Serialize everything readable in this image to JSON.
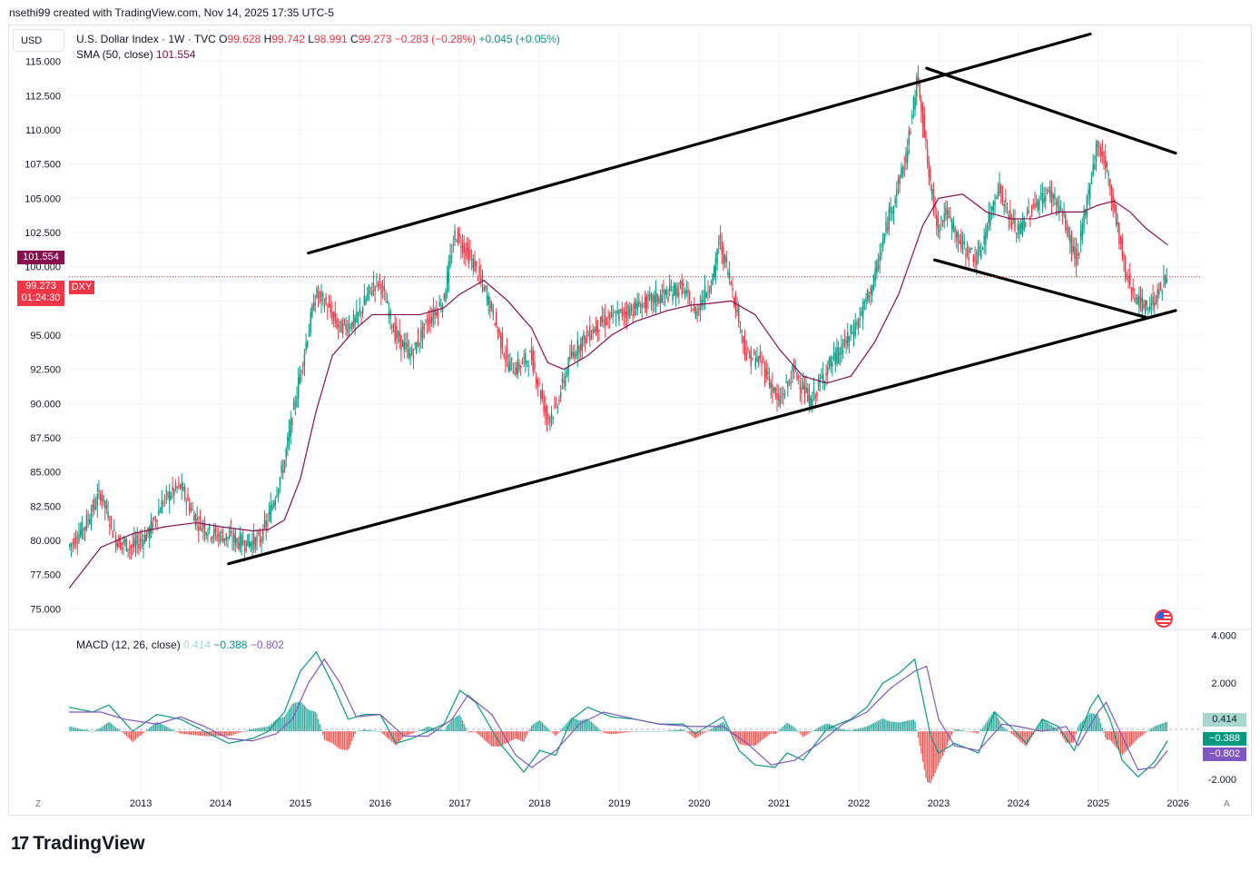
{
  "header": {
    "text": "nsethi99 created with TradingView.com, Nov 14, 2025 17:35 UTC-5"
  },
  "currency_button": "USD",
  "legend": {
    "symbol": "U.S. Dollar Index · 1W · TVC",
    "o_label": "O",
    "o_value": "99.628",
    "h_label": "H",
    "h_value": "99.742",
    "l_label": "L",
    "l_value": "98.991",
    "c_label": "C",
    "c_value": "99.273",
    "change": "−0.283 (−0.28%)",
    "change2": "+0.045 (+0.05%)",
    "sma_label": "SMA (50, close)",
    "sma_value": "101.554"
  },
  "macd_legend": {
    "label": "MACD (12, 26, close)",
    "hist": "0.414",
    "macd": "−0.388",
    "signal": "−0.802"
  },
  "price_tags": {
    "sma": "101.554",
    "last": "99.273",
    "countdown": "01:24:30",
    "symbol": "DXY",
    "macd_hist": "0.414",
    "macd_line": "−0.388",
    "macd_signal": "−0.802"
  },
  "corner_labels": {
    "left": "Z",
    "right": "A"
  },
  "logo": {
    "mark": "17",
    "text": "TradingView"
  },
  "colors": {
    "up": "#089981",
    "down": "#f23645",
    "sma": "#880e4f",
    "macd": "#089981",
    "signal": "#7e57c2",
    "hist_pos": "#26a69a",
    "hist_neg": "#ef5350"
  },
  "chart_data": [
    {
      "type": "candlestick",
      "title": "U.S. Dollar Index · 1W · TVC",
      "x_range": [
        2012.1,
        2026.3
      ],
      "ylim": [
        73.5,
        117.3
      ],
      "y_ticks": [
        "115.000",
        "112.500",
        "110.000",
        "107.500",
        "105.000",
        "102.500",
        "100.000",
        "97.500",
        "95.000",
        "92.500",
        "90.000",
        "87.500",
        "85.000",
        "82.500",
        "80.000",
        "77.500",
        "75.000"
      ],
      "x_ticks": [
        "2013",
        "2014",
        "2015",
        "2016",
        "2017",
        "2018",
        "2019",
        "2020",
        "2021",
        "2022",
        "2023",
        "2024",
        "2025",
        "2026"
      ],
      "price_path": [
        [
          2012.1,
          79.5
        ],
        [
          2012.3,
          81.0
        ],
        [
          2012.5,
          83.5
        ],
        [
          2012.7,
          80.0
        ],
        [
          2012.9,
          79.5
        ],
        [
          2013.1,
          80.5
        ],
        [
          2013.3,
          83.0
        ],
        [
          2013.5,
          84.0
        ],
        [
          2013.7,
          81.5
        ],
        [
          2013.9,
          80.5
        ],
        [
          2014.1,
          80.2
        ],
        [
          2014.3,
          79.8
        ],
        [
          2014.5,
          80.0
        ],
        [
          2014.6,
          81.5
        ],
        [
          2014.8,
          85.5
        ],
        [
          2015.0,
          92.0
        ],
        [
          2015.2,
          98.0
        ],
        [
          2015.3,
          97.5
        ],
        [
          2015.5,
          95.5
        ],
        [
          2015.7,
          96.0
        ],
        [
          2015.9,
          98.5
        ],
        [
          2016.0,
          99.0
        ],
        [
          2016.2,
          95.0
        ],
        [
          2016.4,
          93.5
        ],
        [
          2016.6,
          96.0
        ],
        [
          2016.8,
          97.5
        ],
        [
          2016.95,
          102.5
        ],
        [
          2017.0,
          102.0
        ],
        [
          2017.2,
          100.0
        ],
        [
          2017.4,
          97.0
        ],
        [
          2017.6,
          93.0
        ],
        [
          2017.7,
          92.5
        ],
        [
          2017.9,
          93.5
        ],
        [
          2018.1,
          89.0
        ],
        [
          2018.2,
          89.5
        ],
        [
          2018.4,
          93.5
        ],
        [
          2018.6,
          95.0
        ],
        [
          2018.8,
          96.0
        ],
        [
          2019.0,
          96.5
        ],
        [
          2019.2,
          97.0
        ],
        [
          2019.4,
          97.5
        ],
        [
          2019.6,
          98.0
        ],
        [
          2019.8,
          98.5
        ],
        [
          2019.95,
          96.5
        ],
        [
          2020.2,
          99.5
        ],
        [
          2020.25,
          102.0
        ],
        [
          2020.4,
          99.0
        ],
        [
          2020.6,
          93.5
        ],
        [
          2020.8,
          93.0
        ],
        [
          2021.0,
          90.0
        ],
        [
          2021.2,
          92.5
        ],
        [
          2021.4,
          90.0
        ],
        [
          2021.6,
          92.5
        ],
        [
          2021.8,
          94.0
        ],
        [
          2022.0,
          96.0
        ],
        [
          2022.2,
          99.0
        ],
        [
          2022.4,
          104.0
        ],
        [
          2022.6,
          108.0
        ],
        [
          2022.75,
          114.0
        ],
        [
          2022.9,
          106.0
        ],
        [
          2023.0,
          103.0
        ],
        [
          2023.1,
          104.0
        ],
        [
          2023.3,
          101.5
        ],
        [
          2023.5,
          100.5
        ],
        [
          2023.6,
          102.5
        ],
        [
          2023.75,
          106.0
        ],
        [
          2023.9,
          103.5
        ],
        [
          2024.0,
          102.5
        ],
        [
          2024.2,
          104.5
        ],
        [
          2024.4,
          105.5
        ],
        [
          2024.55,
          104.0
        ],
        [
          2024.7,
          101.0
        ],
        [
          2024.75,
          100.5
        ],
        [
          2024.9,
          106.0
        ],
        [
          2025.0,
          109.0
        ],
        [
          2025.1,
          107.5
        ],
        [
          2025.25,
          103.0
        ],
        [
          2025.35,
          99.5
        ],
        [
          2025.5,
          97.5
        ],
        [
          2025.6,
          97.0
        ],
        [
          2025.7,
          97.5
        ],
        [
          2025.8,
          98.5
        ],
        [
          2025.87,
          99.3
        ]
      ],
      "sma_path": [
        [
          2012.1,
          76.5
        ],
        [
          2012.5,
          79.5
        ],
        [
          2012.9,
          80.5
        ],
        [
          2013.3,
          81.0
        ],
        [
          2013.7,
          81.3
        ],
        [
          2014.0,
          81.0
        ],
        [
          2014.4,
          80.7
        ],
        [
          2014.6,
          80.8
        ],
        [
          2014.8,
          81.5
        ],
        [
          2015.0,
          84.5
        ],
        [
          2015.2,
          89.5
        ],
        [
          2015.4,
          93.5
        ],
        [
          2015.7,
          95.5
        ],
        [
          2015.9,
          96.5
        ],
        [
          2016.2,
          96.5
        ],
        [
          2016.5,
          96.5
        ],
        [
          2016.8,
          97.0
        ],
        [
          2017.0,
          98.0
        ],
        [
          2017.3,
          99.0
        ],
        [
          2017.6,
          97.5
        ],
        [
          2017.9,
          95.5
        ],
        [
          2018.1,
          93.0
        ],
        [
          2018.3,
          92.5
        ],
        [
          2018.6,
          93.5
        ],
        [
          2018.9,
          95.0
        ],
        [
          2019.2,
          96.0
        ],
        [
          2019.6,
          96.8
        ],
        [
          2019.9,
          97.2
        ],
        [
          2020.1,
          97.3
        ],
        [
          2020.4,
          97.5
        ],
        [
          2020.7,
          96.5
        ],
        [
          2021.0,
          94.0
        ],
        [
          2021.3,
          92.0
        ],
        [
          2021.6,
          91.5
        ],
        [
          2021.9,
          92.0
        ],
        [
          2022.2,
          94.5
        ],
        [
          2022.5,
          98.0
        ],
        [
          2022.8,
          103.0
        ],
        [
          2023.0,
          105.0
        ],
        [
          2023.3,
          105.3
        ],
        [
          2023.6,
          104.0
        ],
        [
          2023.9,
          103.5
        ],
        [
          2024.2,
          103.5
        ],
        [
          2024.5,
          104.0
        ],
        [
          2024.8,
          104.0
        ],
        [
          2025.0,
          104.5
        ],
        [
          2025.2,
          104.8
        ],
        [
          2025.4,
          104.0
        ],
        [
          2025.6,
          102.8
        ],
        [
          2025.87,
          101.6
        ]
      ],
      "trendlines": [
        {
          "from": [
            2014.1,
            78.3
          ],
          "to": [
            2025.97,
            96.8
          ]
        },
        {
          "from": [
            2015.1,
            101.0
          ],
          "to": [
            2024.9,
            117.0
          ]
        },
        {
          "from": [
            2022.85,
            114.5
          ],
          "to": [
            2025.97,
            108.3
          ]
        },
        {
          "from": [
            2022.95,
            100.5
          ],
          "to": [
            2025.6,
            96.3
          ]
        }
      ]
    },
    {
      "type": "line",
      "title": "MACD (12, 26, close)",
      "ylim": [
        -2.6,
        4.2
      ],
      "y_ticks": [
        "4.000",
        "2.000",
        "-2.000"
      ],
      "macd_path": [
        [
          2012.1,
          1.0
        ],
        [
          2012.4,
          0.8
        ],
        [
          2012.6,
          1.1
        ],
        [
          2012.9,
          0.0
        ],
        [
          2013.2,
          0.7
        ],
        [
          2013.5,
          0.5
        ],
        [
          2013.8,
          0.0
        ],
        [
          2014.1,
          -0.5
        ],
        [
          2014.4,
          -0.3
        ],
        [
          2014.6,
          0.0
        ],
        [
          2014.8,
          0.8
        ],
        [
          2015.0,
          2.5
        ],
        [
          2015.2,
          3.3
        ],
        [
          2015.4,
          2.0
        ],
        [
          2015.6,
          0.5
        ],
        [
          2015.8,
          0.7
        ],
        [
          2016.0,
          0.7
        ],
        [
          2016.2,
          -0.5
        ],
        [
          2016.4,
          -0.3
        ],
        [
          2016.6,
          0.0
        ],
        [
          2016.8,
          0.3
        ],
        [
          2017.0,
          1.7
        ],
        [
          2017.2,
          1.2
        ],
        [
          2017.5,
          -0.5
        ],
        [
          2017.8,
          -1.7
        ],
        [
          2018.0,
          -0.8
        ],
        [
          2018.2,
          -1.0
        ],
        [
          2018.4,
          0.5
        ],
        [
          2018.6,
          1.0
        ],
        [
          2018.9,
          0.6
        ],
        [
          2019.2,
          0.5
        ],
        [
          2019.5,
          0.3
        ],
        [
          2019.8,
          0.3
        ],
        [
          2019.95,
          -0.1
        ],
        [
          2020.3,
          0.6
        ],
        [
          2020.5,
          -0.8
        ],
        [
          2020.7,
          -1.4
        ],
        [
          2020.95,
          -1.5
        ],
        [
          2021.1,
          -0.9
        ],
        [
          2021.3,
          -1.2
        ],
        [
          2021.6,
          0.1
        ],
        [
          2021.9,
          0.5
        ],
        [
          2022.1,
          1.0
        ],
        [
          2022.3,
          2.0
        ],
        [
          2022.5,
          2.4
        ],
        [
          2022.7,
          3.0
        ],
        [
          2022.9,
          -0.2
        ],
        [
          2023.0,
          -0.9
        ],
        [
          2023.2,
          -0.5
        ],
        [
          2023.5,
          -0.9
        ],
        [
          2023.7,
          0.8
        ],
        [
          2023.9,
          0.2
        ],
        [
          2024.1,
          -0.5
        ],
        [
          2024.3,
          0.5
        ],
        [
          2024.5,
          0.2
        ],
        [
          2024.7,
          -0.8
        ],
        [
          2024.9,
          1.0
        ],
        [
          2025.0,
          1.5
        ],
        [
          2025.15,
          0.5
        ],
        [
          2025.3,
          -1.2
        ],
        [
          2025.5,
          -1.9
        ],
        [
          2025.7,
          -1.3
        ],
        [
          2025.87,
          -0.39
        ]
      ],
      "signal_path": [
        [
          2012.1,
          0.8
        ],
        [
          2012.5,
          0.8
        ],
        [
          2012.8,
          0.5
        ],
        [
          2013.2,
          0.3
        ],
        [
          2013.5,
          0.6
        ],
        [
          2013.8,
          0.2
        ],
        [
          2014.1,
          -0.3
        ],
        [
          2014.4,
          -0.4
        ],
        [
          2014.7,
          -0.1
        ],
        [
          2014.9,
          0.5
        ],
        [
          2015.1,
          2.0
        ],
        [
          2015.3,
          3.0
        ],
        [
          2015.5,
          2.0
        ],
        [
          2015.7,
          0.6
        ],
        [
          2016.0,
          0.7
        ],
        [
          2016.3,
          -0.2
        ],
        [
          2016.6,
          -0.2
        ],
        [
          2016.9,
          0.5
        ],
        [
          2017.1,
          1.5
        ],
        [
          2017.4,
          0.7
        ],
        [
          2017.7,
          -1.0
        ],
        [
          2017.9,
          -1.5
        ],
        [
          2018.2,
          -0.8
        ],
        [
          2018.5,
          0.3
        ],
        [
          2018.8,
          0.8
        ],
        [
          2019.2,
          0.5
        ],
        [
          2019.5,
          0.3
        ],
        [
          2019.9,
          0.2
        ],
        [
          2020.3,
          0.2
        ],
        [
          2020.6,
          -0.5
        ],
        [
          2020.9,
          -1.4
        ],
        [
          2021.2,
          -1.2
        ],
        [
          2021.5,
          -0.5
        ],
        [
          2021.8,
          0.3
        ],
        [
          2022.1,
          0.8
        ],
        [
          2022.4,
          1.8
        ],
        [
          2022.7,
          2.5
        ],
        [
          2022.85,
          2.7
        ],
        [
          2023.0,
          0.5
        ],
        [
          2023.2,
          -0.6
        ],
        [
          2023.5,
          -0.8
        ],
        [
          2023.8,
          0.3
        ],
        [
          2024.0,
          0.2
        ],
        [
          2024.3,
          0.0
        ],
        [
          2024.6,
          0.2
        ],
        [
          2024.75,
          -0.6
        ],
        [
          2025.0,
          0.8
        ],
        [
          2025.1,
          1.2
        ],
        [
          2025.3,
          -0.2
        ],
        [
          2025.5,
          -1.6
        ],
        [
          2025.7,
          -1.5
        ],
        [
          2025.87,
          -0.8
        ]
      ]
    }
  ]
}
